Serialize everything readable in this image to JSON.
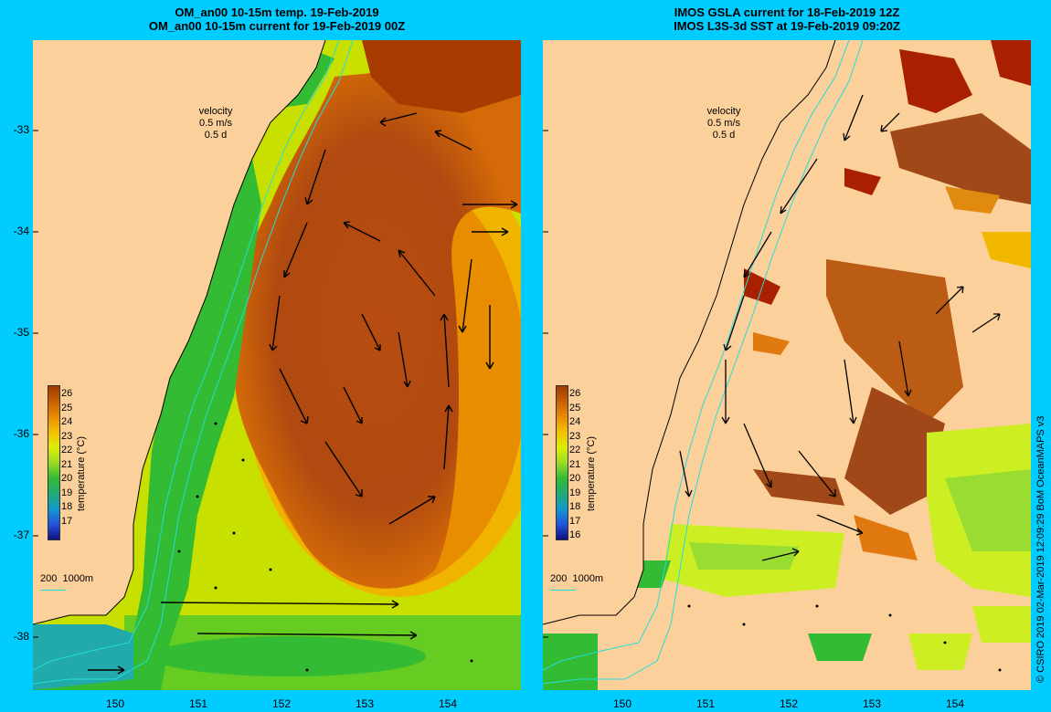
{
  "left_panel": {
    "title_line1": "OM_an00 10-15m temp. 19-Feb-2019",
    "title_line2": "OM_an00 10-15m current for 19-Feb-2019 00Z",
    "velocity_label": "velocity",
    "velocity_speed": "0.5 m/s",
    "velocity_time": "0.5 d",
    "isobath_legend": "200  1000m"
  },
  "right_panel": {
    "title_line1": "IMOS GSLA current for 18-Feb-2019 12Z",
    "title_line2": "IMOS L3S-3d SST at 19-Feb-2019 09:20Z",
    "velocity_label": "velocity",
    "velocity_speed": "0.5 m/s",
    "velocity_time": "0.5 d",
    "isobath_legend": "200  1000m"
  },
  "colorbar": {
    "title": "temperature (°C)",
    "left_labels": [
      "26",
      "25",
      "24",
      "23",
      "22",
      "21",
      "20",
      "19",
      "18",
      "17"
    ],
    "right_labels": [
      "26",
      "25",
      "24",
      "23",
      "22",
      "21",
      "20",
      "19",
      "18",
      "17",
      "16"
    ],
    "colors": [
      "#a03a00",
      "#c86000",
      "#e88c00",
      "#f5c000",
      "#ddee00",
      "#99dd22",
      "#33bb33",
      "#22aa77",
      "#1199cc",
      "#2255dd",
      "#101080"
    ]
  },
  "latitude_ticks": [
    "-33",
    "-34",
    "-35",
    "-36",
    "-37",
    "-38"
  ],
  "longitude_ticks": [
    "150",
    "151",
    "152",
    "153",
    "154"
  ],
  "credit": "© CSIRO 2019   02-Mar-2019 12:09:29 BoM OceanMAPS v3",
  "colors": {
    "background": "#00ccff",
    "land": "#fcd09a",
    "warm_core": "#b04a10",
    "cool_shelf": "#33bb33"
  }
}
